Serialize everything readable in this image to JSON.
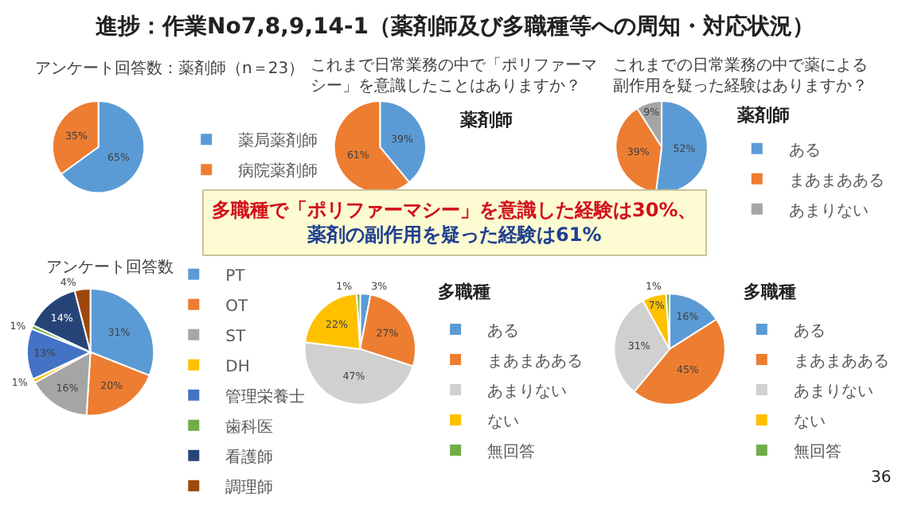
{
  "chart_data": [
    {
      "type": "other",
      "title": "進捗：作業No7,8,9,14-1（薬剤師及び多職種等への周知・対応状況）",
      "annotations": [
        "多職種で「ポリファーマシー」を意識した経験は30%、",
        "薬剤の副作用を疑った経験は61%",
        "36"
      ]
    },
    {
      "type": "pie",
      "title": "アンケート回答数：薬剤師（n＝23）",
      "categories": [
        "薬局薬剤師",
        "病院薬剤師"
      ],
      "values": [
        65,
        35
      ],
      "value_labels": [
        "65%",
        "35%"
      ],
      "colors": [
        "#5b9bd5",
        "#ed7d31"
      ],
      "legend": "right"
    },
    {
      "type": "pie",
      "title": "これまで日常業務の中で「ポリファーマシー」を意識したことはありますか？",
      "subtitle": "薬剤師",
      "categories": [
        null,
        null
      ],
      "values": [
        39,
        61
      ],
      "value_labels": [
        "39%",
        "61%"
      ],
      "colors": [
        "#5b9bd5",
        "#ed7d31"
      ]
    },
    {
      "type": "pie",
      "title": "これまでの日常業務の中で薬による副作用を疑った経験はありますか？",
      "subtitle": "薬剤師",
      "categories": [
        "ある",
        "まあまあある",
        "あまりない"
      ],
      "values": [
        52,
        39,
        9
      ],
      "value_labels": [
        "52%",
        "39%",
        "9%"
      ],
      "colors": [
        "#5b9bd5",
        "#ed7d31",
        "#a5a5a5"
      ],
      "legend": "right"
    },
    {
      "type": "pie",
      "title": "アンケート回答数",
      "categories": [
        "PT",
        "OT",
        "ST",
        "DH",
        "管理栄養士",
        "歯科医",
        "看護師",
        "調理師"
      ],
      "values": [
        31,
        20,
        16,
        1,
        13,
        1,
        14,
        4
      ],
      "value_labels": [
        "31%",
        "20%",
        "16%",
        "1%",
        "13%",
        "1%",
        "14%",
        "4%"
      ],
      "colors": [
        "#5b9bd5",
        "#ed7d31",
        "#a5a5a5",
        "#ffc000",
        "#4472c4",
        "#70ad47",
        "#264478",
        "#9e480e"
      ],
      "legend": "right"
    },
    {
      "type": "pie",
      "subtitle": "多職種",
      "categories": [
        "ある",
        "まあまあある",
        "あまりない",
        "ない",
        "無回答"
      ],
      "values": [
        3,
        27,
        47,
        22,
        1
      ],
      "value_labels": [
        "3%",
        "27%",
        "47%",
        "22%",
        "1%"
      ],
      "colors": [
        "#5b9bd5",
        "#ed7d31",
        "#d0d0d0",
        "#ffc000",
        "#70ad47"
      ],
      "legend": "right"
    },
    {
      "type": "pie",
      "subtitle": "多職種",
      "categories": [
        "ある",
        "まあまあある",
        "あまりない",
        "ない",
        "無回答"
      ],
      "values": [
        16,
        45,
        31,
        7,
        1
      ],
      "value_labels": [
        "16%",
        "45%",
        "31%",
        "7%",
        "1%"
      ],
      "colors": [
        "#5b9bd5",
        "#ed7d31",
        "#d0d0d0",
        "#ffc000",
        "#70ad47"
      ],
      "legend": "right"
    }
  ]
}
